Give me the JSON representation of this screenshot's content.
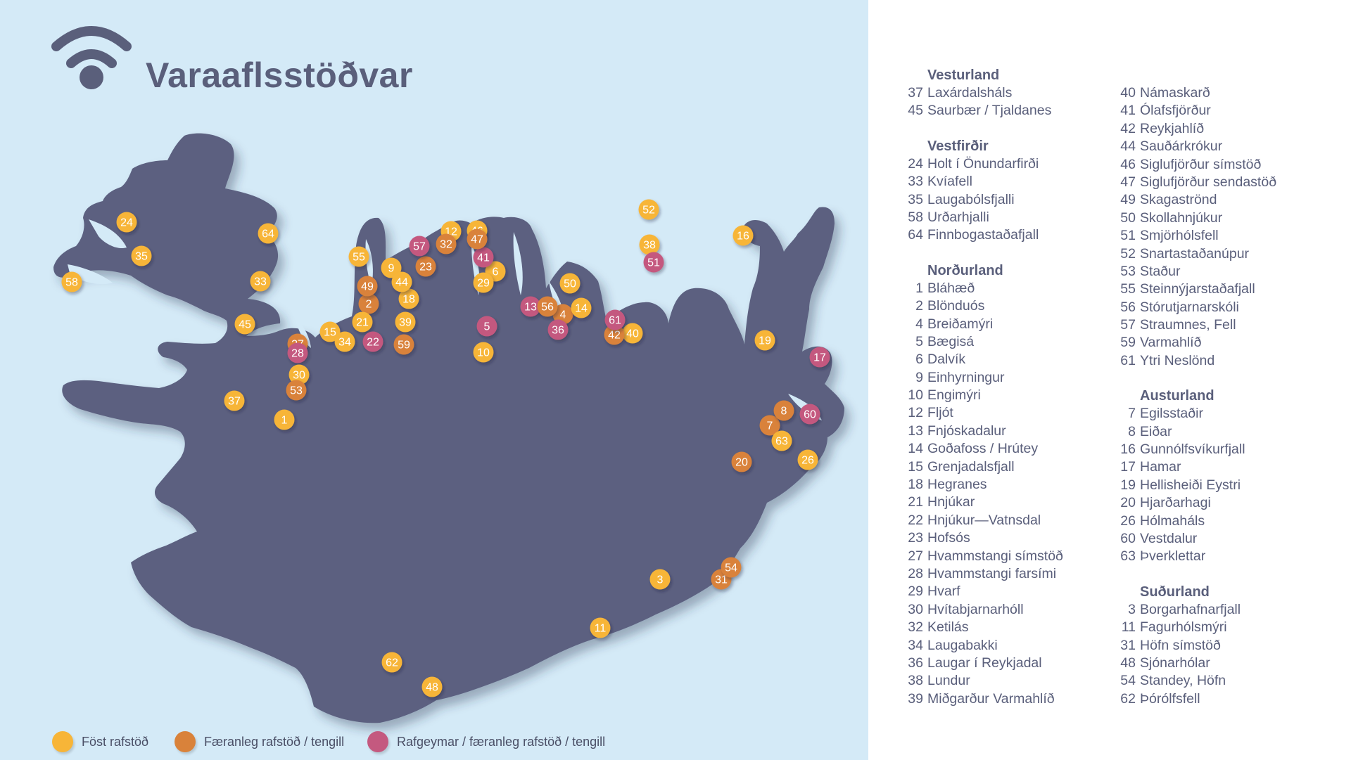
{
  "title": "Varaaflsstöðvar",
  "colors": {
    "fixed": "#f7b538",
    "portable": "#d9823a",
    "battery": "#c4597f",
    "land": "#5b6180",
    "sea": "#d4eaf7",
    "text": "#5a5f7b"
  },
  "legend": [
    {
      "key": "fixed",
      "label": "Föst rafstöð"
    },
    {
      "key": "portable",
      "label": "Færanleg rafstöð / tengill"
    },
    {
      "key": "battery",
      "label": "Rafgeymar / færanleg rafstöð / tengill"
    }
  ],
  "markers": [
    {
      "n": "1",
      "t": "fixed"
    },
    {
      "n": "2",
      "t": "portable"
    },
    {
      "n": "3",
      "t": "fixed"
    },
    {
      "n": "4",
      "t": "portable"
    },
    {
      "n": "5",
      "t": "battery"
    },
    {
      "n": "6",
      "t": "fixed"
    },
    {
      "n": "7",
      "t": "portable"
    },
    {
      "n": "8",
      "t": "portable"
    },
    {
      "n": "9",
      "t": "fixed"
    },
    {
      "n": "10",
      "t": "fixed"
    },
    {
      "n": "11",
      "t": "fixed"
    },
    {
      "n": "12",
      "t": "fixed"
    },
    {
      "n": "13",
      "t": "battery"
    },
    {
      "n": "14",
      "t": "fixed"
    },
    {
      "n": "15",
      "t": "fixed"
    },
    {
      "n": "16",
      "t": "fixed"
    },
    {
      "n": "17",
      "t": "battery"
    },
    {
      "n": "18",
      "t": "fixed"
    },
    {
      "n": "19",
      "t": "fixed"
    },
    {
      "n": "20",
      "t": "portable"
    },
    {
      "n": "21",
      "t": "fixed"
    },
    {
      "n": "22",
      "t": "battery"
    },
    {
      "n": "23",
      "t": "portable"
    },
    {
      "n": "24",
      "t": "fixed"
    },
    {
      "n": "26",
      "t": "fixed"
    },
    {
      "n": "27",
      "t": "portable"
    },
    {
      "n": "28",
      "t": "battery"
    },
    {
      "n": "29",
      "t": "fixed"
    },
    {
      "n": "30",
      "t": "fixed"
    },
    {
      "n": "31",
      "t": "portable"
    },
    {
      "n": "32",
      "t": "portable"
    },
    {
      "n": "33",
      "t": "fixed"
    },
    {
      "n": "34",
      "t": "fixed"
    },
    {
      "n": "35",
      "t": "fixed"
    },
    {
      "n": "36",
      "t": "battery"
    },
    {
      "n": "37",
      "t": "fixed"
    },
    {
      "n": "38",
      "t": "fixed"
    },
    {
      "n": "39",
      "t": "fixed"
    },
    {
      "n": "40",
      "t": "fixed"
    },
    {
      "n": "41",
      "t": "battery"
    },
    {
      "n": "42",
      "t": "portable"
    },
    {
      "n": "44",
      "t": "fixed"
    },
    {
      "n": "45",
      "t": "fixed"
    },
    {
      "n": "46",
      "t": "fixed"
    },
    {
      "n": "47",
      "t": "portable"
    },
    {
      "n": "48",
      "t": "fixed"
    },
    {
      "n": "49",
      "t": "portable"
    },
    {
      "n": "50",
      "t": "fixed"
    },
    {
      "n": "51",
      "t": "battery"
    },
    {
      "n": "52",
      "t": "fixed"
    },
    {
      "n": "53",
      "t": "portable"
    },
    {
      "n": "54",
      "t": "portable"
    },
    {
      "n": "55",
      "t": "fixed"
    },
    {
      "n": "56",
      "t": "portable"
    },
    {
      "n": "57",
      "t": "battery"
    },
    {
      "n": "58",
      "t": "fixed"
    },
    {
      "n": "59",
      "t": "portable"
    },
    {
      "n": "60",
      "t": "battery"
    },
    {
      "n": "61",
      "t": "battery"
    },
    {
      "n": "62",
      "t": "fixed"
    },
    {
      "n": "63",
      "t": "fixed"
    },
    {
      "n": "64",
      "t": "fixed"
    }
  ],
  "regions_left": [
    {
      "name": "Vesturland",
      "stations": [
        [
          "37",
          "Laxárdalsháls"
        ],
        [
          "45",
          "Saurbær / Tjaldanes"
        ]
      ]
    },
    {
      "name": "Vestfirðir",
      "stations": [
        [
          "24",
          "Holt í Önundarfirði"
        ],
        [
          "33",
          "Kvíafell"
        ],
        [
          "35",
          "Laugabólsfjalli"
        ],
        [
          "58",
          "Urðarhjalli"
        ],
        [
          "64",
          "Finnbogastaðafjall"
        ]
      ]
    },
    {
      "name": "Norðurland",
      "stations": [
        [
          "1",
          "Bláhæð"
        ],
        [
          "2",
          "Blönduós"
        ],
        [
          "4",
          "Breiðamýri"
        ],
        [
          "5",
          "Bægisá"
        ],
        [
          "6",
          "Dalvík"
        ],
        [
          "9",
          "Einhyrningur"
        ],
        [
          "10",
          "Engimýri"
        ],
        [
          "12",
          "Fljót"
        ],
        [
          "13",
          "Fnjóskadalur"
        ],
        [
          "14",
          "Goðafoss / Hrútey"
        ],
        [
          "15",
          "Grenjadalsfjall"
        ],
        [
          "18",
          "Hegranes"
        ],
        [
          "21",
          "Hnjúkar"
        ],
        [
          "22",
          "Hnjúkur—Vatnsdal"
        ],
        [
          "23",
          "Hofsós"
        ],
        [
          "27",
          "Hvammstangi símstöð"
        ],
        [
          "28",
          "Hvammstangi farsími"
        ],
        [
          "29",
          "Hvarf"
        ],
        [
          "30",
          "Hvítabjarnarhóll"
        ],
        [
          "32",
          "Ketilás"
        ],
        [
          "34",
          "Laugabakki"
        ],
        [
          "36",
          "Laugar í Reykjadal"
        ],
        [
          "38",
          "Lundur"
        ],
        [
          "39",
          "Miðgarður Varmahlíð"
        ]
      ]
    }
  ],
  "regions_right": [
    {
      "name": "",
      "stations": [
        [
          "40",
          "Námaskarð"
        ],
        [
          "41",
          "Ólafsfjörður"
        ],
        [
          "42",
          "Reykjahlíð"
        ],
        [
          "44",
          "Sauðárkrókur"
        ],
        [
          "46",
          "Siglufjörður símstöð"
        ],
        [
          "47",
          "Siglufjörður sendastöð"
        ],
        [
          "49",
          "Skagaströnd"
        ],
        [
          "50",
          "Skollahnjúkur"
        ],
        [
          "51",
          "Smjörhólsfell"
        ],
        [
          "52",
          "Snartastaðanúpur"
        ],
        [
          "53",
          "Staður"
        ],
        [
          "55",
          "Steinnýjarstaðafjall"
        ],
        [
          "56",
          "Stórutjarnarskóli"
        ],
        [
          "57",
          "Straumnes, Fell"
        ],
        [
          "59",
          "Varmahlíð"
        ],
        [
          "61",
          "Ytri Neslönd"
        ]
      ]
    },
    {
      "name": "Austurland",
      "stations": [
        [
          "7",
          "Egilsstaðir"
        ],
        [
          "8",
          "Eiðar"
        ],
        [
          "16",
          "Gunnólfsvíkurfjall"
        ],
        [
          "17",
          "Hamar"
        ],
        [
          "19",
          "Hellisheiði Eystri"
        ],
        [
          "20",
          "Hjarðarhagi"
        ],
        [
          "26",
          "Hólmaháls"
        ],
        [
          "60",
          "Vestdalur"
        ],
        [
          "63",
          "Þverklettar"
        ]
      ]
    },
    {
      "name": "Suðurland",
      "stations": [
        [
          "3",
          "Borgarhafnarfjall"
        ],
        [
          "11",
          "Fagurhólsmýri"
        ],
        [
          "31",
          "Höfn símstöð"
        ],
        [
          "48",
          "Sjónarhólar"
        ],
        [
          "54",
          "Standey, Höfn"
        ],
        [
          "62",
          "Þórólfsfell"
        ]
      ]
    }
  ]
}
